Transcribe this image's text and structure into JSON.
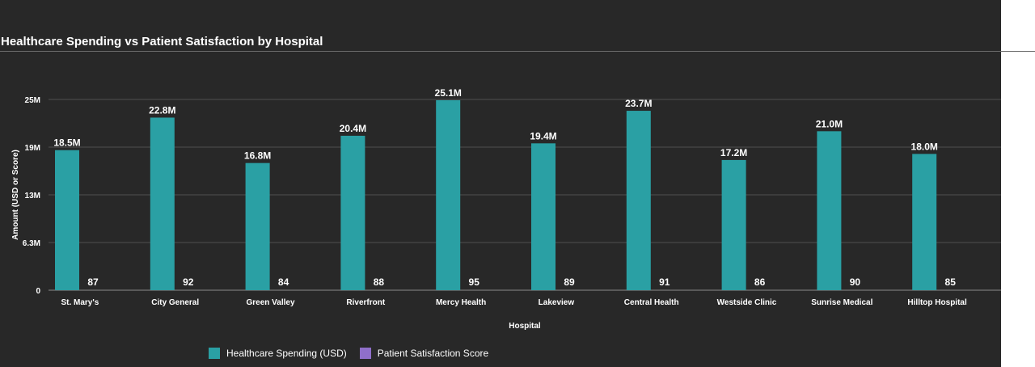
{
  "chart_data": {
    "type": "bar",
    "title": "Healthcare Spending vs Patient Satisfaction by Hospital",
    "xlabel": "Hospital",
    "ylabel": "Amount (USD or Score)",
    "categories": [
      "St. Mary's",
      "City General",
      "Green Valley",
      "Riverfront",
      "Mercy Health",
      "Lakeview",
      "Central Health",
      "Westside Clinic",
      "Sunrise Medical",
      "Hilltop Hospital"
    ],
    "yticks": [
      {
        "value": 0,
        "label": "0"
      },
      {
        "value": 6300000,
        "label": "6.3M"
      },
      {
        "value": 12600000,
        "label": "13M"
      },
      {
        "value": 18900000,
        "label": "19M"
      },
      {
        "value": 25200000,
        "label": "25M"
      }
    ],
    "ylim": [
      0,
      25200000
    ],
    "grid": true,
    "legend_position": "bottom",
    "series": [
      {
        "name": "Healthcare Spending (USD)",
        "color": "#2aa0a4",
        "values": [
          18500000,
          22800000,
          16800000,
          20400000,
          25100000,
          19400000,
          23700000,
          17200000,
          21000000,
          18000000
        ],
        "labels": [
          "18.5M",
          "22.8M",
          "16.8M",
          "20.4M",
          "25.1M",
          "19.4M",
          "23.7M",
          "17.2M",
          "21.0M",
          "18.0M"
        ]
      },
      {
        "name": "Patient Satisfaction Score",
        "color": "#8f6fc9",
        "values": [
          87,
          92,
          84,
          88,
          95,
          89,
          91,
          86,
          90,
          85
        ],
        "labels": [
          "87",
          "92",
          "84",
          "88",
          "95",
          "89",
          "91",
          "86",
          "90",
          "85"
        ]
      }
    ]
  }
}
